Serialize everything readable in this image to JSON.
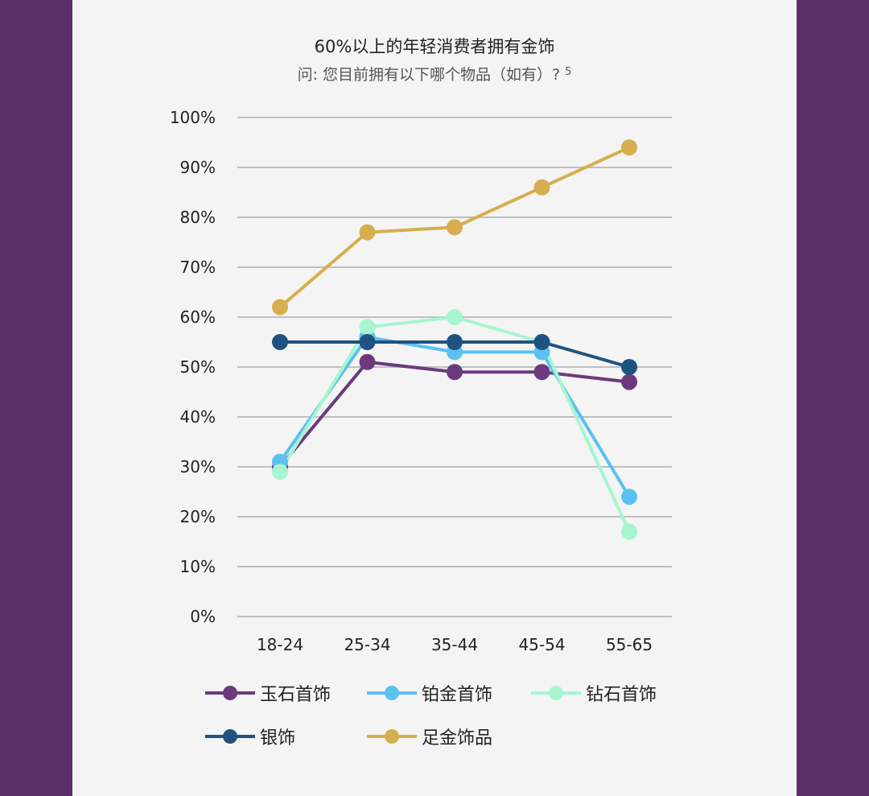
{
  "header": {
    "title": "60%以上的年轻消费者拥有金饰",
    "subtitle": "问: 您目前拥有以下哪个物品（如有）?",
    "footnote": "5"
  },
  "chart_data": {
    "type": "line",
    "title": "60%以上的年轻消费者拥有金饰",
    "subtitle": "问: 您目前拥有以下哪个物品（如有）?",
    "categories": [
      "18-24",
      "25-34",
      "35-44",
      "45-54",
      "55-65"
    ],
    "ylim": [
      0,
      100
    ],
    "yticks": [
      "0%",
      "10%",
      "20%",
      "30%",
      "40%",
      "50%",
      "60%",
      "70%",
      "80%",
      "90%",
      "100%"
    ],
    "grid": true,
    "legend_position": "bottom",
    "series": [
      {
        "name": "玉石首饰",
        "color": "#6b3a7d",
        "values": [
          30,
          51,
          49,
          49,
          47
        ]
      },
      {
        "name": "铂金首饰",
        "color": "#5bc0f2",
        "values": [
          31,
          56,
          53,
          53,
          24
        ]
      },
      {
        "name": "钻石首饰",
        "color": "#a6f5d0",
        "values": [
          29,
          58,
          60,
          55,
          17
        ]
      },
      {
        "name": "银饰",
        "color": "#1f5280",
        "values": [
          55,
          55,
          55,
          55,
          50
        ]
      },
      {
        "name": "足金饰品",
        "color": "#d6ae4f",
        "values": [
          62,
          77,
          78,
          86,
          94
        ]
      }
    ]
  }
}
